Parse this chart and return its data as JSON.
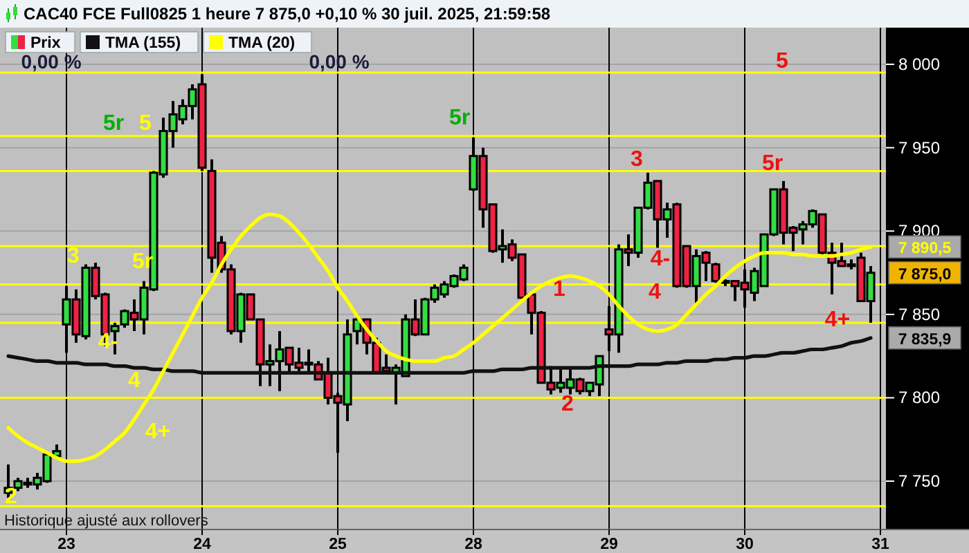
{
  "chart_data": {
    "type": "candlestick",
    "title": "CAC40 FCE Full0825 1 heure 7 875,0 +0,10 % 30 juil. 2025, 21:59:58",
    "categories": [
      null,
      null,
      null,
      null,
      null,
      null,
      "23",
      null,
      null,
      null,
      null,
      null,
      null,
      null,
      null,
      null,
      null,
      null,
      null,
      null,
      "24",
      null,
      null,
      null,
      null,
      null,
      null,
      null,
      null,
      null,
      null,
      null,
      null,
      null,
      "25",
      null,
      null,
      null,
      null,
      null,
      null,
      null,
      null,
      null,
      null,
      null,
      null,
      null,
      "28",
      null,
      null,
      null,
      null,
      null,
      null,
      null,
      null,
      null,
      null,
      null,
      null,
      null,
      "29",
      null,
      null,
      null,
      null,
      null,
      null,
      null,
      null,
      null,
      null,
      null,
      null,
      null,
      "30",
      null,
      null,
      null,
      null,
      null,
      null,
      null,
      null,
      null,
      null,
      null,
      null,
      null,
      "31"
    ],
    "ylim": [
      7721,
      8022
    ],
    "yticks": [
      {
        "value": 7750,
        "label": "7 750"
      },
      {
        "value": 7800,
        "label": "7 800"
      },
      {
        "value": 7850,
        "label": "7 850"
      },
      {
        "value": 7900,
        "label": "7 900"
      },
      {
        "value": 7950,
        "label": "7 950"
      },
      {
        "value": 8000,
        "label": "8 000"
      }
    ],
    "grid": true,
    "legend": "top left",
    "series": [
      {
        "name": "Prix",
        "ohlc": [
          [
            7743,
            7760,
            7740,
            7746
          ],
          [
            7746,
            7752,
            7744,
            7750
          ],
          [
            7749,
            7752,
            7746,
            7748
          ],
          [
            7748,
            7755,
            7745,
            7752
          ],
          [
            7750,
            7767,
            7749,
            7766
          ],
          [
            7765,
            7772,
            7764,
            7768
          ],
          [
            7844,
            7867,
            7827,
            7859
          ],
          [
            7859,
            7865,
            7833,
            7838
          ],
          [
            7837,
            7880,
            7835,
            7878
          ],
          [
            7878,
            7881,
            7859,
            7861
          ],
          [
            7862,
            7863,
            7831,
            7838
          ],
          [
            7840,
            7845,
            7826,
            7843
          ],
          [
            7844,
            7853,
            7842,
            7852
          ],
          [
            7851,
            7859,
            7840,
            7847
          ],
          [
            7847,
            7870,
            7838,
            7866
          ],
          [
            7865,
            7936,
            7864,
            7935
          ],
          [
            7934,
            7968,
            7932,
            7960
          ],
          [
            7960,
            7978,
            7950,
            7970
          ],
          [
            7967,
            7979,
            7964,
            7975
          ],
          [
            7975,
            7988,
            7967,
            7985
          ],
          [
            7988,
            7994,
            7936,
            7938
          ],
          [
            7936,
            7943,
            7875,
            7884
          ],
          [
            7893,
            7897,
            7875,
            7877
          ],
          [
            7877,
            7880,
            7838,
            7840
          ],
          [
            7840,
            7863,
            7833,
            7862
          ],
          [
            7862,
            7862,
            7847,
            7847
          ],
          [
            7847,
            7847,
            7807,
            7820
          ],
          [
            7820,
            7832,
            7807,
            7822
          ],
          [
            7822,
            7840,
            7804,
            7829
          ],
          [
            7830,
            7830,
            7815,
            7820
          ],
          [
            7821,
            7830,
            7816,
            7818
          ],
          [
            7821,
            7829,
            7815,
            7820
          ],
          [
            7820,
            7822,
            7811,
            7811
          ],
          [
            7815,
            7824,
            7796,
            7800
          ],
          [
            7801,
            7803,
            7767,
            7797
          ],
          [
            7796,
            7847,
            7786,
            7838
          ],
          [
            7840,
            7850,
            7832,
            7847
          ],
          [
            7847,
            7847,
            7826,
            7833
          ],
          [
            7833,
            7836,
            7815,
            7815
          ],
          [
            7818,
            7826,
            7815,
            7816
          ],
          [
            7815,
            7820,
            7796,
            7818
          ],
          [
            7813,
            7850,
            7813,
            7847
          ],
          [
            7847,
            7859,
            7837,
            7838
          ],
          [
            7838,
            7860,
            7838,
            7859
          ],
          [
            7859,
            7868,
            7857,
            7866
          ],
          [
            7862,
            7870,
            7860,
            7868
          ],
          [
            7867,
            7874,
            7866,
            7873
          ],
          [
            7871,
            7880,
            7870,
            7878
          ],
          [
            7925,
            7956,
            7924,
            7945
          ],
          [
            7945,
            7950,
            7902,
            7913
          ],
          [
            7916,
            7916,
            7887,
            7888
          ],
          [
            7889,
            7901,
            7881,
            7891
          ],
          [
            7892,
            7895,
            7882,
            7884
          ],
          [
            7886,
            7886,
            7860,
            7860
          ],
          [
            7862,
            7862,
            7838,
            7851
          ],
          [
            7851,
            7852,
            7809,
            7809
          ],
          [
            7809,
            7819,
            7802,
            7805
          ],
          [
            7806,
            7818,
            7803,
            7809
          ],
          [
            7806,
            7818,
            7802,
            7811
          ],
          [
            7811,
            7812,
            7802,
            7804
          ],
          [
            7804,
            7809,
            7801,
            7809
          ],
          [
            7808,
            7825,
            7801,
            7825
          ],
          [
            7841,
            7855,
            7828,
            7838
          ],
          [
            7838,
            7892,
            7827,
            7889
          ],
          [
            7889,
            7898,
            7879,
            7887
          ],
          [
            7887,
            7914,
            7884,
            7914
          ],
          [
            7914,
            7935,
            7913,
            7929
          ],
          [
            7930,
            7930,
            7890,
            7907
          ],
          [
            7907,
            7917,
            7896,
            7913
          ],
          [
            7916,
            7917,
            7866,
            7867
          ],
          [
            7891,
            7891,
            7866,
            7867
          ],
          [
            7867,
            7889,
            7855,
            7885
          ],
          [
            7887,
            7888,
            7870,
            7881
          ],
          [
            7880,
            7881,
            7869,
            7870
          ],
          [
            7869,
            7871,
            7867,
            7870
          ],
          [
            7870,
            7870,
            7858,
            7867
          ],
          [
            7869,
            7877,
            7854,
            7865
          ],
          [
            7863,
            7878,
            7858,
            7876
          ],
          [
            7867,
            7898,
            7867,
            7898
          ],
          [
            7898,
            7925,
            7897,
            7925
          ],
          [
            7925,
            7930,
            7892,
            7899
          ],
          [
            7902,
            7903,
            7888,
            7899
          ],
          [
            7901,
            7906,
            7892,
            7904
          ],
          [
            7904,
            7913,
            7902,
            7912
          ],
          [
            7910,
            7910,
            7884,
            7887
          ],
          [
            7887,
            7893,
            7862,
            7881
          ],
          [
            7882,
            7893,
            7879,
            7879
          ],
          [
            7880,
            7883,
            7877,
            7879
          ],
          [
            7884,
            7887,
            7858,
            7858
          ],
          [
            7858,
            7879,
            7845,
            7875
          ],
          null
        ],
        "colors": [
          "#33dd44",
          "#33dd44",
          "#ee2244",
          "#33dd44",
          "#33dd44",
          "#33dd44",
          "#33dd44",
          "#ee2244",
          "#33dd44",
          "#ee2244",
          "#ee2244",
          "#33dd44",
          "#33dd44",
          "#ee2244",
          "#33dd44",
          "#33dd44",
          "#33dd44",
          "#33dd44",
          "#33dd44",
          "#33dd44",
          "#ee2244",
          "#ee2244",
          "#ee2244",
          "#ee2244",
          "#33dd44",
          "#ee2244",
          "#ee2244",
          "#33dd44",
          "#33dd44",
          "#ee2244",
          "#ee2244",
          "#ee2244",
          "#ee2244",
          "#ee2244",
          "#ee2244",
          "#33dd44",
          "#33dd44",
          "#ee2244",
          "#ee2244",
          "#ee2244",
          "#33dd44",
          "#33dd44",
          "#ee2244",
          "#33dd44",
          "#33dd44",
          "#33dd44",
          "#33dd44",
          "#33dd44",
          "#33dd44",
          "#ee2244",
          "#ee2244",
          "#33dd44",
          "#ee2244",
          "#ee2244",
          "#ee2244",
          "#ee2244",
          "#ee2244",
          "#33dd44",
          "#33dd44",
          "#ee2244",
          "#33dd44",
          "#33dd44",
          "#ee2244",
          "#33dd44",
          "#ee2244",
          "#33dd44",
          "#33dd44",
          "#ee2244",
          "#33dd44",
          "#ee2244",
          "#ee2244",
          "#33dd44",
          "#ee2244",
          "#ee2244",
          "#33dd44",
          "#ee2244",
          "#ee2244",
          "#33dd44",
          "#33dd44",
          "#33dd44",
          "#ee2244",
          "#ee2244",
          "#33dd44",
          "#33dd44",
          "#ee2244",
          "#ee2244",
          "#ee2244",
          "#ee2244",
          "#ee2244",
          "#33dd44",
          null
        ],
        "value_labels": [
          null,
          null,
          null,
          null,
          null,
          null,
          null,
          null,
          null,
          null,
          null,
          null,
          null,
          null,
          null,
          null,
          null,
          null,
          null,
          null,
          null,
          null,
          null,
          null,
          null,
          null,
          null,
          null,
          null,
          null,
          null,
          null,
          null,
          null,
          null,
          null,
          null,
          null,
          null,
          null,
          null,
          null,
          null,
          null,
          null,
          null,
          null,
          null,
          null,
          null,
          null,
          null,
          null,
          null,
          null,
          null,
          null,
          null,
          null,
          null,
          null,
          null,
          null,
          null,
          null,
          null,
          null,
          null,
          null,
          null,
          null,
          null,
          null,
          null,
          null,
          null,
          null,
          null,
          null,
          null,
          null,
          null,
          null,
          null,
          null,
          null,
          null,
          null,
          null,
          "7 875,0",
          null
        ]
      },
      {
        "name": "TMA (155)",
        "type": "line",
        "color": "#111111",
        "values": [
          7825,
          7824,
          7823,
          7822,
          7822,
          7821,
          7821,
          7821,
          7820,
          7820,
          7820,
          7819,
          7819,
          7818,
          7818,
          7817,
          7817,
          7816,
          7816,
          7816,
          7815,
          7815,
          7815,
          7815,
          7815,
          7815,
          7815,
          7815,
          7815,
          7815,
          7815,
          7815,
          7815,
          7815,
          7815,
          7815,
          7815,
          7815,
          7815,
          7815,
          7815,
          7815,
          7815,
          7815,
          7815,
          7815,
          7815,
          7815,
          7816,
          7816,
          7816,
          7817,
          7817,
          7817,
          7818,
          7818,
          7818,
          7818,
          7818,
          7818,
          7818,
          7819,
          7819,
          7819,
          7819,
          7820,
          7820,
          7820,
          7821,
          7821,
          7822,
          7822,
          7822,
          7823,
          7823,
          7824,
          7824,
          7825,
          7825,
          7826,
          7827,
          7827,
          7828,
          7829,
          7829,
          7830,
          7831,
          7833,
          7834,
          7835.9,
          null
        ],
        "value_labels": [
          null,
          null,
          null,
          null,
          null,
          null,
          null,
          null,
          null,
          null,
          null,
          null,
          null,
          null,
          null,
          null,
          null,
          null,
          null,
          null,
          null,
          null,
          null,
          null,
          null,
          null,
          null,
          null,
          null,
          null,
          null,
          null,
          null,
          null,
          null,
          null,
          null,
          null,
          null,
          null,
          null,
          null,
          null,
          null,
          null,
          null,
          null,
          null,
          null,
          null,
          null,
          null,
          null,
          null,
          null,
          null,
          null,
          null,
          null,
          null,
          null,
          null,
          null,
          null,
          null,
          null,
          null,
          null,
          null,
          null,
          null,
          null,
          null,
          null,
          null,
          null,
          null,
          null,
          null,
          null,
          null,
          null,
          null,
          null,
          null,
          null,
          null,
          null,
          null,
          "7 835,9",
          null
        ]
      },
      {
        "name": "TMA (20)",
        "type": "line",
        "color": "#ffff00",
        "values": [
          7782,
          7777,
          7773,
          7770,
          7767,
          7764,
          7762,
          7762,
          7763,
          7765,
          7769,
          7774,
          7779,
          7787,
          7796,
          7805,
          7816,
          7827,
          7838,
          7849,
          7860,
          7869,
          7880,
          7889,
          7897,
          7903,
          7908,
          7910,
          7909,
          7905,
          7899,
          7892,
          7884,
          7876,
          7866,
          7858,
          7849,
          7841,
          7834,
          7828,
          7825,
          7823,
          7822,
          7822,
          7822,
          7824,
          7825,
          7829,
          7833,
          7838,
          7843,
          7848,
          7853,
          7858,
          7863,
          7867,
          7870,
          7872,
          7873,
          7872,
          7870,
          7867,
          7862,
          7855,
          7849,
          7844,
          7841,
          7840,
          7841,
          7844,
          7850,
          7856,
          7862,
          7867,
          7873,
          7878,
          7882,
          7885,
          7887,
          7887,
          7887,
          7886,
          7886,
          7885,
          7885,
          7885,
          7886,
          7887,
          7889,
          7890.5,
          null
        ],
        "value_labels": [
          null,
          null,
          null,
          null,
          null,
          null,
          null,
          null,
          null,
          null,
          null,
          null,
          null,
          null,
          null,
          null,
          null,
          null,
          null,
          null,
          null,
          null,
          null,
          null,
          null,
          null,
          null,
          null,
          null,
          null,
          null,
          null,
          null,
          null,
          null,
          null,
          null,
          null,
          null,
          null,
          null,
          null,
          null,
          null,
          null,
          null,
          null,
          null,
          null,
          null,
          null,
          null,
          null,
          null,
          null,
          null,
          null,
          null,
          null,
          null,
          null,
          null,
          null,
          null,
          null,
          null,
          null,
          null,
          null,
          null,
          null,
          null,
          null,
          null,
          null,
          null,
          null,
          null,
          null,
          null,
          null,
          null,
          null,
          null,
          null,
          null,
          null,
          null,
          null,
          "7 890,5",
          null
        ]
      }
    ],
    "ref_lines": [
      {
        "axis": "y",
        "value": 7995,
        "color": "#ffff00"
      },
      {
        "axis": "y",
        "value": 7957,
        "color": "#ffff00"
      },
      {
        "axis": "y",
        "value": 7936,
        "color": "#ffff00"
      },
      {
        "axis": "y",
        "value": 7891,
        "color": "#ffff00"
      },
      {
        "axis": "y",
        "value": 7868,
        "color": "#ffff00"
      },
      {
        "axis": "y",
        "value": 7845,
        "color": "#ffff00"
      },
      {
        "axis": "y",
        "value": 7800,
        "color": "#ffff00"
      },
      {
        "axis": "y",
        "value": 7735,
        "color": "#ffff00"
      }
    ],
    "annotations": [
      "0,00 %",
      "0,00 %",
      "5r",
      "5",
      "3",
      "5r",
      "4-",
      "4",
      "4+",
      "2",
      "5r",
      "3",
      "4-",
      "4",
      "1",
      "2",
      "5",
      "5r",
      "4+",
      "Historique ajusté aux rollovers"
    ]
  }
}
